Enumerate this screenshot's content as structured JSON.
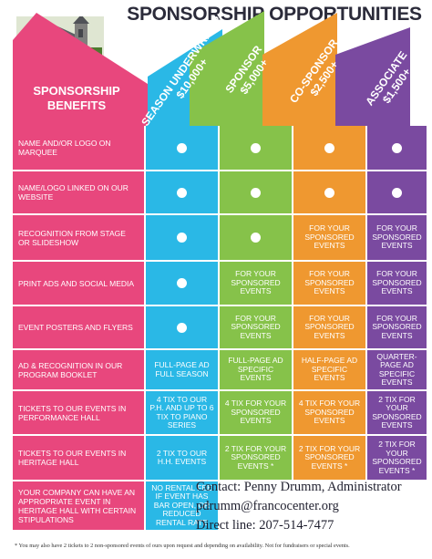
{
  "title": "SPONSORSHIP OPPORTUNITIES",
  "benefits_header": "SPONSORSHIP BENEFITS",
  "colors": {
    "pink": "#e8477d",
    "cyan": "#2ab8e6",
    "green": "#86c24a",
    "orange": "#ef9830",
    "purple": "#7a4aa0"
  },
  "tiers": [
    {
      "name": "SEASON UNDERWRITER",
      "amount": "$10,000+"
    },
    {
      "name": "SPONSOR",
      "amount": "$5,000+"
    },
    {
      "name": "CO-SPONSOR",
      "amount": "$2,500+"
    },
    {
      "name": "ASSOCIATE",
      "amount": "$1,500+"
    }
  ],
  "rows": [
    {
      "benefit": "NAME AND/OR LOGO ON MARQUEE",
      "cells": [
        "dot",
        "dot",
        "dot",
        "dot"
      ]
    },
    {
      "benefit": "NAME/LOGO LINKED ON OUR WEBSITE",
      "cells": [
        "dot",
        "dot",
        "dot",
        "dot"
      ]
    },
    {
      "benefit": "RECOGNITION FROM STAGE OR SLIDESHOW",
      "cells": [
        "dot",
        "dot",
        "FOR YOUR SPONSORED EVENTS",
        "FOR YOUR SPONSORED EVENTS"
      ]
    },
    {
      "benefit": "PRINT ADS AND SOCIAL MEDIA",
      "cells": [
        "dot",
        "FOR YOUR SPONSORED EVENTS",
        "FOR YOUR SPONSORED EVENTS",
        "FOR YOUR SPONSORED EVENTS"
      ]
    },
    {
      "benefit": "EVENT POSTERS AND FLYERS",
      "cells": [
        "dot",
        "FOR YOUR SPONSORED EVENTS",
        "FOR YOUR SPONSORED EVENTS",
        "FOR YOUR SPONSORED EVENTS"
      ]
    },
    {
      "benefit": "AD & RECOGNITION IN OUR PROGRAM BOOKLET",
      "cells": [
        "FULL-PAGE AD FULL SEASON",
        "FULL-PAGE AD SPECIFIC EVENTS",
        "HALF-PAGE AD SPECIFIC EVENTS",
        "QUARTER-PAGE AD SPECIFIC EVENTS"
      ]
    },
    {
      "benefit": "TICKETS TO OUR EVENTS IN PERFORMANCE HALL",
      "cells": [
        "4 TIX TO OUR P.H. AND UP TO 6 TIX TO PIANO SERIES",
        "4 TIX FOR YOUR SPONSORED EVENTS",
        "4 TIX FOR YOUR SPONSORED EVENTS",
        "2 TIX FOR YOUR SPONSORED EVENTS"
      ]
    },
    {
      "benefit": "TICKETS TO OUR EVENTS IN HERITAGE HALL",
      "cells": [
        "2 TIX TO OUR H.H. EVENTS",
        "2 TIX FOR YOUR SPONSORED EVENTS *",
        "2 TIX FOR YOUR SPONSORED EVENTS *",
        "2 TIX FOR YOUR SPONSORED EVENTS *"
      ]
    }
  ],
  "last_row": {
    "benefit": "YOUR COMPANY CAN HAVE AN APPROPRIATE EVENT IN HERITAGE HALL WITH CERTAIN STIPULATIONS",
    "cell": "NO RENTAL FEE IF EVENT HAS BAR OPEN, OR REDUCED RENTAL RATE"
  },
  "contact": {
    "line1": "Contact: Penny Drumm, Administrator",
    "line2": "pdrumm@francocenter.org",
    "line3": "Direct line: 207-514-7477"
  },
  "footnote": "* You may also have 2 tickets to 2 non-sponsored events of ours upon request and depending on availability. Not for fundraisers or special events."
}
